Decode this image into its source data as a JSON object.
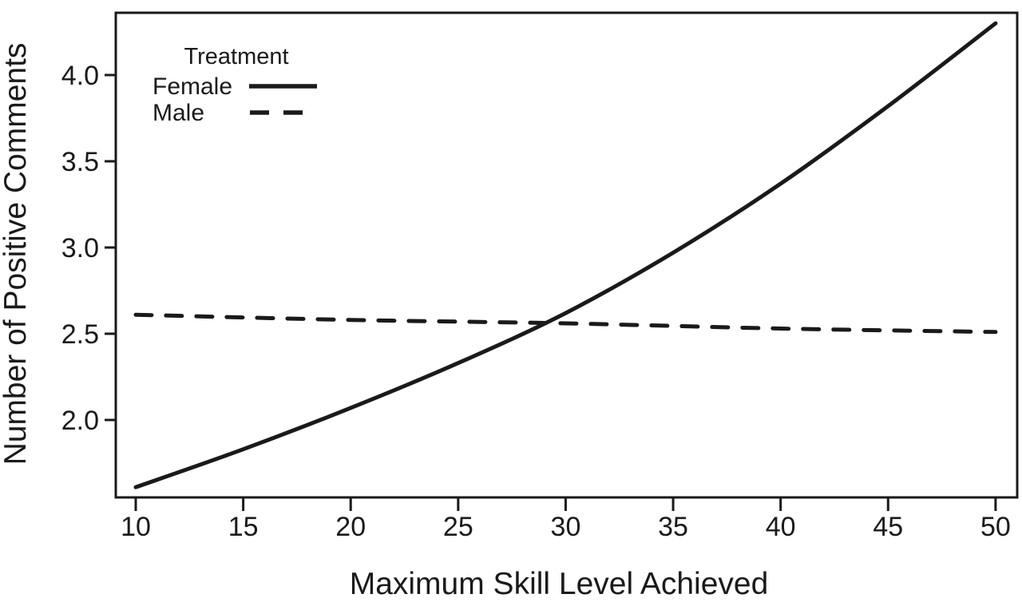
{
  "chart_data": {
    "type": "line",
    "title": "",
    "xlabel": "Maximum Skill Level Achieved",
    "ylabel": "Number of Positive Comments",
    "xlim": [
      9.1,
      51.0
    ],
    "ylim": [
      1.55,
      4.36
    ],
    "grid": false,
    "legend_title": "Treatment",
    "legend_position": "top-left-inside",
    "x_ticks": [
      {
        "value": 10,
        "label": "10"
      },
      {
        "value": 15,
        "label": "15"
      },
      {
        "value": 20,
        "label": "20"
      },
      {
        "value": 25,
        "label": "25"
      },
      {
        "value": 30,
        "label": "30"
      },
      {
        "value": 35,
        "label": "35"
      },
      {
        "value": 40,
        "label": "40"
      },
      {
        "value": 45,
        "label": "45"
      },
      {
        "value": 50,
        "label": "50"
      }
    ],
    "y_ticks": [
      {
        "value": 2.0,
        "label": "2.0"
      },
      {
        "value": 2.5,
        "label": "2.5"
      },
      {
        "value": 3.0,
        "label": "3.0"
      },
      {
        "value": 3.5,
        "label": "3.5"
      },
      {
        "value": 4.0,
        "label": "4.0"
      }
    ],
    "series": [
      {
        "name": "Female",
        "style": "solid",
        "color": "#1a1a1a",
        "x": [
          10,
          15,
          20,
          25,
          30,
          35,
          40,
          45,
          50
        ],
        "y": [
          1.61,
          1.83,
          2.07,
          2.33,
          2.62,
          2.97,
          3.37,
          3.82,
          4.3
        ]
      },
      {
        "name": "Male",
        "style": "dashed",
        "color": "#1a1a1a",
        "x": [
          10,
          20,
          30,
          40,
          50
        ],
        "y": [
          2.61,
          2.58,
          2.56,
          2.53,
          2.51
        ]
      }
    ],
    "crossing_point": {
      "x": 29,
      "y": 2.57
    }
  },
  "colors": {
    "line": "#1a1a1a",
    "text": "#1a1a1a",
    "background": "#ffffff"
  }
}
